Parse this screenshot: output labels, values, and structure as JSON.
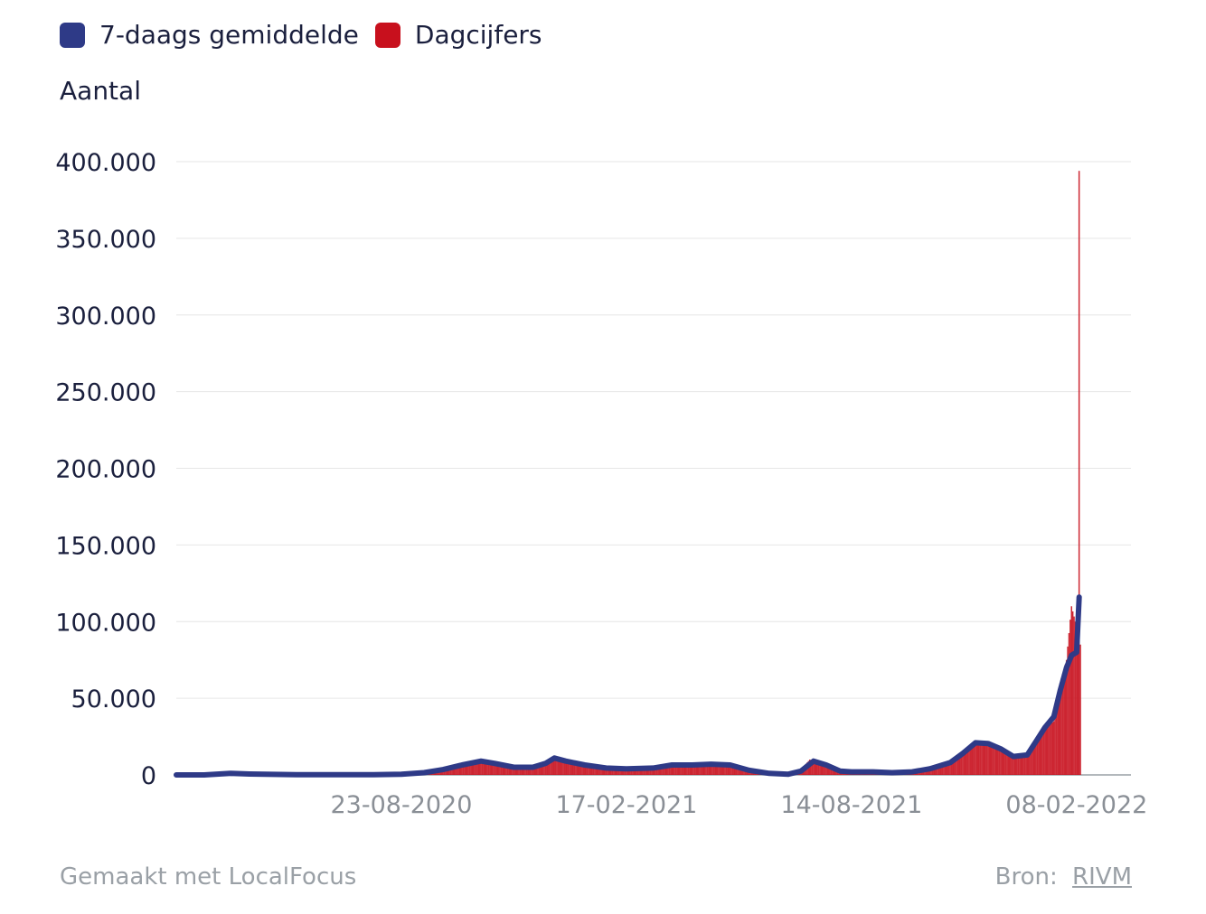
{
  "legend": {
    "items": [
      {
        "label": "7-daags gemiddelde",
        "color": "#2e3a87"
      },
      {
        "label": "Dagcijfers",
        "color": "#c8101d"
      }
    ]
  },
  "footer": {
    "made_with": "Gemaakt met LocalFocus",
    "source_label": "Bron:",
    "source_link": "RIVM"
  },
  "chart_data": {
    "type": "bar",
    "ylabel": "Aantal",
    "ylim": [
      0,
      400000
    ],
    "yticks": [
      0,
      50000,
      100000,
      150000,
      200000,
      250000,
      300000,
      350000,
      400000
    ],
    "ytick_labels": [
      "0",
      "50.000",
      "100.000",
      "150.000",
      "200.000",
      "250.000",
      "300.000",
      "350.000",
      "400.000"
    ],
    "xlim": [
      "2020-02-27",
      "2022-03-23"
    ],
    "xticks": [
      "2020-08-23",
      "2021-02-17",
      "2021-08-14",
      "2022-02-08"
    ],
    "xtick_labels": [
      "23-08-2020",
      "17-02-2021",
      "14-08-2021",
      "08-02-2022"
    ],
    "grid": true,
    "legend_position": "top-left",
    "series": [
      {
        "name": "Dagcijfers",
        "kind": "bar",
        "color": "#c8101d",
        "points": [
          [
            "2020-02-27",
            0
          ],
          [
            "2020-04-10",
            1200
          ],
          [
            "2020-04-20",
            1000
          ],
          [
            "2020-06-01",
            150
          ],
          [
            "2020-07-01",
            100
          ],
          [
            "2020-07-20",
            150
          ],
          [
            "2020-08-10",
            600
          ],
          [
            "2020-08-23",
            500
          ],
          [
            "2020-09-10",
            1500
          ],
          [
            "2020-09-25",
            3500
          ],
          [
            "2020-10-10",
            6500
          ],
          [
            "2020-10-25",
            9000
          ],
          [
            "2020-11-05",
            7500
          ],
          [
            "2020-11-20",
            5000
          ],
          [
            "2020-12-05",
            5000
          ],
          [
            "2020-12-15",
            8000
          ],
          [
            "2020-12-22",
            11500
          ],
          [
            "2020-12-31",
            9000
          ],
          [
            "2021-01-15",
            6000
          ],
          [
            "2021-02-01",
            4500
          ],
          [
            "2021-02-17",
            4000
          ],
          [
            "2021-03-10",
            4500
          ],
          [
            "2021-03-25",
            6500
          ],
          [
            "2021-04-10",
            7000
          ],
          [
            "2021-04-25",
            7500
          ],
          [
            "2021-05-10",
            6500
          ],
          [
            "2021-05-25",
            3000
          ],
          [
            "2021-06-10",
            1000
          ],
          [
            "2021-06-25",
            600
          ],
          [
            "2021-07-05",
            3500
          ],
          [
            "2021-07-12",
            10000
          ],
          [
            "2021-07-20",
            8000
          ],
          [
            "2021-08-01",
            3000
          ],
          [
            "2021-08-14",
            2000
          ],
          [
            "2021-08-31",
            2000
          ],
          [
            "2021-09-15",
            1500
          ],
          [
            "2021-10-01",
            2000
          ],
          [
            "2021-10-15",
            4000
          ],
          [
            "2021-10-31",
            8000
          ],
          [
            "2021-11-10",
            14000
          ],
          [
            "2021-11-20",
            21000
          ],
          [
            "2021-11-30",
            20000
          ],
          [
            "2021-12-10",
            18000
          ],
          [
            "2021-12-20",
            13000
          ],
          [
            "2021-12-31",
            12000
          ],
          [
            "2022-01-07",
            20000
          ],
          [
            "2022-01-14",
            30000
          ],
          [
            "2022-01-21",
            35000
          ],
          [
            "2022-01-26",
            60000
          ],
          [
            "2022-01-31",
            75000
          ],
          [
            "2022-02-04",
            110000
          ],
          [
            "2022-02-07",
            100000
          ],
          [
            "2022-02-09",
            85000
          ],
          [
            "2022-02-10",
            394000
          ],
          [
            "2022-02-11",
            85000
          ]
        ]
      },
      {
        "name": "7-daags gemiddelde",
        "kind": "line",
        "color": "#2e3a87",
        "points": [
          [
            "2020-02-27",
            0
          ],
          [
            "2020-03-20",
            0
          ],
          [
            "2020-04-10",
            1000
          ],
          [
            "2020-04-25",
            600
          ],
          [
            "2020-06-01",
            100
          ],
          [
            "2020-08-01",
            200
          ],
          [
            "2020-08-23",
            500
          ],
          [
            "2020-09-10",
            1500
          ],
          [
            "2020-09-25",
            3500
          ],
          [
            "2020-10-10",
            6500
          ],
          [
            "2020-10-25",
            9000
          ],
          [
            "2020-11-05",
            7500
          ],
          [
            "2020-11-20",
            5000
          ],
          [
            "2020-12-05",
            5000
          ],
          [
            "2020-12-15",
            7500
          ],
          [
            "2020-12-22",
            11000
          ],
          [
            "2020-12-31",
            9000
          ],
          [
            "2021-01-15",
            6500
          ],
          [
            "2021-02-01",
            4500
          ],
          [
            "2021-02-17",
            4000
          ],
          [
            "2021-03-10",
            4500
          ],
          [
            "2021-03-25",
            6500
          ],
          [
            "2021-04-10",
            6500
          ],
          [
            "2021-04-25",
            7000
          ],
          [
            "2021-05-10",
            6500
          ],
          [
            "2021-05-25",
            3000
          ],
          [
            "2021-06-10",
            1000
          ],
          [
            "2021-06-25",
            500
          ],
          [
            "2021-07-05",
            2500
          ],
          [
            "2021-07-15",
            9000
          ],
          [
            "2021-07-25",
            6500
          ],
          [
            "2021-08-05",
            2500
          ],
          [
            "2021-08-14",
            2000
          ],
          [
            "2021-08-31",
            2000
          ],
          [
            "2021-09-15",
            1500
          ],
          [
            "2021-10-01",
            2000
          ],
          [
            "2021-10-15",
            4000
          ],
          [
            "2021-10-31",
            8000
          ],
          [
            "2021-11-10",
            14000
          ],
          [
            "2021-11-20",
            21000
          ],
          [
            "2021-11-30",
            20500
          ],
          [
            "2021-12-10",
            17000
          ],
          [
            "2021-12-20",
            12000
          ],
          [
            "2021-12-31",
            13000
          ],
          [
            "2022-01-07",
            22000
          ],
          [
            "2022-01-14",
            31000
          ],
          [
            "2022-01-21",
            38000
          ],
          [
            "2022-01-26",
            55000
          ],
          [
            "2022-01-31",
            70000
          ],
          [
            "2022-02-04",
            78000
          ],
          [
            "2022-02-08",
            80000
          ],
          [
            "2022-02-10",
            116000
          ]
        ]
      }
    ]
  }
}
